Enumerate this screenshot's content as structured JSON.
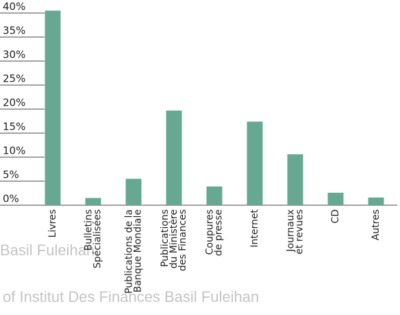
{
  "chart_data": {
    "type": "bar",
    "categories": [
      "Livres",
      "Bulletins\nSpécialisées",
      "Publications de la\nBanque Mondiale",
      "Publications\ndu Ministère\ndes Finances",
      "Coupures\nde presse",
      "Internet",
      "Journaux\net revues",
      "CD",
      "Autres"
    ],
    "values": [
      40.5,
      1.5,
      5.5,
      19.7,
      3.9,
      17.4,
      10.6,
      2.6,
      1.6
    ],
    "color": "#66a892",
    "ylim": [
      0,
      40
    ],
    "yticks": [
      {
        "value": 0,
        "label": "0%"
      },
      {
        "value": 5,
        "label": "5%"
      },
      {
        "value": 10,
        "label": "10%"
      },
      {
        "value": 15,
        "label": "15%"
      },
      {
        "value": 20,
        "label": "20%"
      },
      {
        "value": 25,
        "label": "25%"
      },
      {
        "value": 30,
        "label": "30%"
      },
      {
        "value": 35,
        "label": "35%"
      },
      {
        "value": 40,
        "label": "40%"
      }
    ],
    "grid": false
  },
  "watermarks": [
    "Basil Fuleihan",
    "of Institut Des Finances Basil Fuleihan"
  ]
}
